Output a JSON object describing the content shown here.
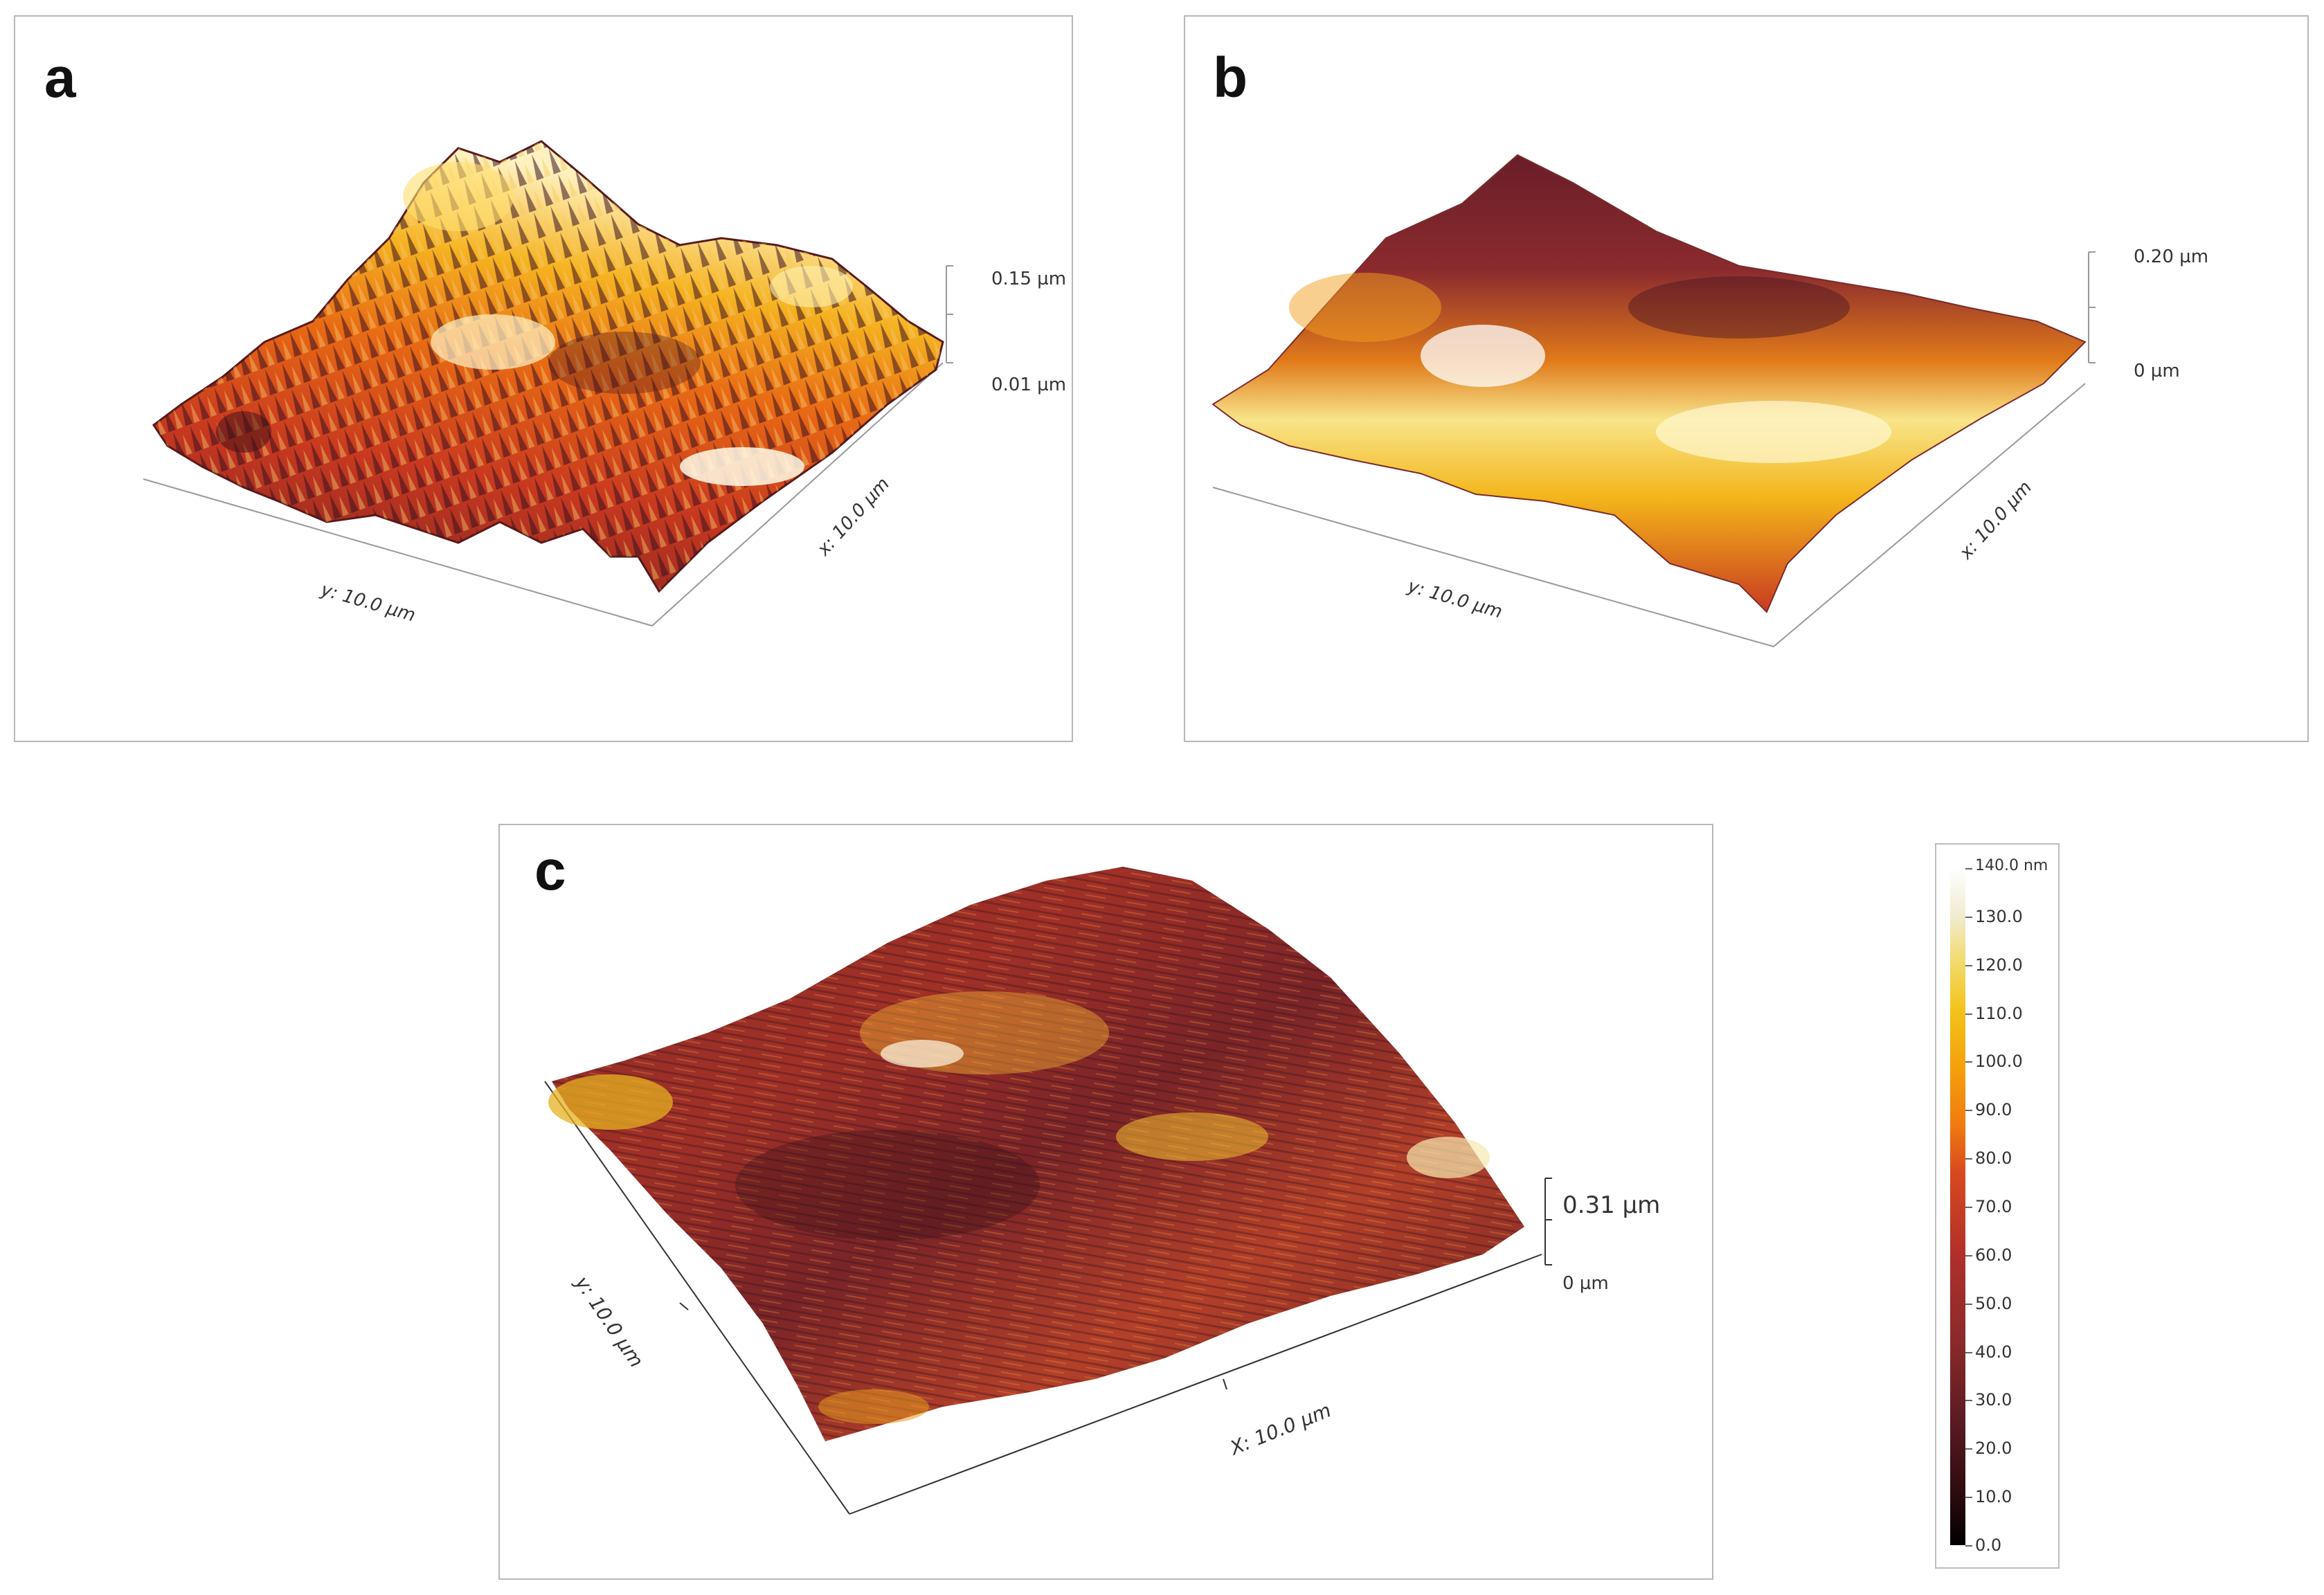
{
  "panels": {
    "a": {
      "label": "a",
      "y_axis": "y: 10.0 µm",
      "x_axis": "x: 10.0 µm",
      "z_top": "0.15 µm",
      "z_bottom": "0.01 µm"
    },
    "b": {
      "label": "b",
      "y_axis": "y: 10.0 µm",
      "x_axis": "x: 10.0 µm",
      "z_top": "0.20 µm",
      "z_bottom": "0 µm"
    },
    "c": {
      "label": "c",
      "y_axis": "y: 10.0 µm",
      "x_axis": "X: 10.0 µm",
      "z_top": "0.31 µm",
      "z_bottom": "0 µm"
    }
  },
  "colorbar": {
    "unit_label": "140.0 nm",
    "ticks": [
      "130.0",
      "120.0",
      "110.0",
      "100.0",
      "90.0",
      "80.0",
      "70.0",
      "60.0",
      "50.0",
      "40.0",
      "30.0",
      "20.0",
      "10.0",
      "0.0"
    ],
    "colors": [
      "#000000",
      "#5a1a22",
      "#b0302a",
      "#f07a10",
      "#f3c31a",
      "#ffffff"
    ]
  }
}
